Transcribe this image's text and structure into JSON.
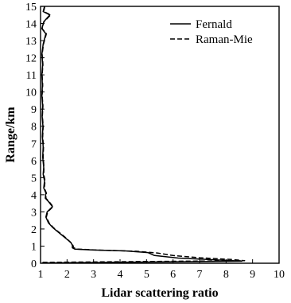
{
  "chart_data": {
    "type": "line",
    "xlabel": "Lidar scattering ratio",
    "ylabel": "Range/km",
    "xlim": [
      1,
      10
    ],
    "ylim": [
      0,
      15
    ],
    "xticks": [
      1,
      2,
      3,
      4,
      5,
      6,
      7,
      8,
      9,
      10
    ],
    "yticks": [
      0,
      1,
      2,
      3,
      4,
      5,
      6,
      7,
      8,
      9,
      10,
      11,
      12,
      13,
      14,
      15
    ],
    "legend_position": "top-right",
    "grid": false,
    "series": [
      {
        "name": "Fernald",
        "line_style": "solid",
        "points": [
          [
            1.05,
            0.02
          ],
          [
            8.6,
            0.12
          ],
          [
            7.6,
            0.2
          ],
          [
            6.2,
            0.3
          ],
          [
            5.3,
            0.45
          ],
          [
            5.05,
            0.62
          ],
          [
            4.2,
            0.72
          ],
          [
            3.0,
            0.77
          ],
          [
            2.3,
            0.82
          ],
          [
            2.2,
            0.9
          ],
          [
            2.2,
            1.05
          ],
          [
            2.15,
            1.2
          ],
          [
            2.0,
            1.4
          ],
          [
            1.8,
            1.65
          ],
          [
            1.6,
            1.9
          ],
          [
            1.45,
            2.1
          ],
          [
            1.3,
            2.35
          ],
          [
            1.2,
            2.7
          ],
          [
            1.25,
            3.0
          ],
          [
            1.45,
            3.3
          ],
          [
            1.3,
            3.6
          ],
          [
            1.18,
            3.8
          ],
          [
            1.2,
            4.1
          ],
          [
            1.12,
            4.4
          ],
          [
            1.15,
            4.8
          ],
          [
            1.1,
            5.2
          ],
          [
            1.12,
            5.6
          ],
          [
            1.08,
            6.2
          ],
          [
            1.1,
            6.8
          ],
          [
            1.07,
            7.4
          ],
          [
            1.09,
            8.0
          ],
          [
            1.06,
            8.6
          ],
          [
            1.08,
            9.2
          ],
          [
            1.05,
            9.8
          ],
          [
            1.07,
            10.4
          ],
          [
            1.05,
            11.0
          ],
          [
            1.08,
            11.6
          ],
          [
            1.05,
            12.2
          ],
          [
            1.1,
            12.8
          ],
          [
            1.2,
            13.4
          ],
          [
            1.05,
            13.7
          ],
          [
            1.12,
            14.1
          ],
          [
            1.35,
            14.5
          ],
          [
            1.1,
            14.7
          ],
          [
            1.15,
            15.0
          ]
        ]
      },
      {
        "name": "Raman-Mie",
        "line_style": "dashed",
        "points": [
          [
            1.08,
            0.05
          ],
          [
            8.7,
            0.15
          ],
          [
            8.2,
            0.22
          ],
          [
            7.0,
            0.32
          ],
          [
            6.0,
            0.45
          ],
          [
            5.4,
            0.6
          ],
          [
            4.6,
            0.7
          ],
          [
            3.3,
            0.76
          ],
          [
            2.4,
            0.82
          ],
          [
            2.25,
            0.9
          ],
          [
            2.22,
            1.05
          ],
          [
            2.15,
            1.2
          ],
          [
            2.0,
            1.42
          ],
          [
            1.82,
            1.66
          ],
          [
            1.62,
            1.9
          ],
          [
            1.47,
            2.1
          ],
          [
            1.32,
            2.36
          ],
          [
            1.22,
            2.7
          ],
          [
            1.27,
            3.0
          ],
          [
            1.47,
            3.3
          ],
          [
            1.32,
            3.6
          ],
          [
            1.2,
            3.8
          ],
          [
            1.22,
            4.1
          ],
          [
            1.14,
            4.4
          ],
          [
            1.17,
            4.8
          ],
          [
            1.12,
            5.2
          ],
          [
            1.13,
            5.6
          ],
          [
            1.1,
            6.2
          ],
          [
            1.11,
            6.8
          ],
          [
            1.08,
            7.4
          ],
          [
            1.1,
            8.0
          ],
          [
            1.07,
            8.6
          ],
          [
            1.09,
            9.2
          ],
          [
            1.06,
            9.8
          ],
          [
            1.08,
            10.4
          ],
          [
            1.06,
            11.0
          ],
          [
            1.09,
            11.6
          ],
          [
            1.06,
            12.2
          ],
          [
            1.11,
            12.8
          ],
          [
            1.22,
            13.4
          ],
          [
            1.06,
            13.7
          ],
          [
            1.13,
            14.1
          ],
          [
            1.38,
            14.5
          ],
          [
            1.12,
            14.7
          ],
          [
            1.16,
            15.0
          ]
        ]
      }
    ]
  }
}
